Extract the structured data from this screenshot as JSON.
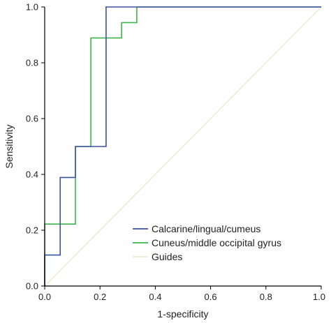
{
  "chart_data": {
    "type": "line",
    "title": "",
    "xlabel": "1-specificity",
    "ylabel": "Sensitivity",
    "xlim": [
      0.0,
      1.0
    ],
    "ylim": [
      0.0,
      1.0
    ],
    "xticks": [
      "0.0",
      "0.2",
      "0.4",
      "0.6",
      "0.8",
      "1.0"
    ],
    "yticks": [
      "0.0",
      "0.2",
      "0.4",
      "0.6",
      "0.8",
      "1.0"
    ],
    "grid": false,
    "legend_position": "bottom-right",
    "series": [
      {
        "name": "Calcarine/lingual/cumeus",
        "color": "#3a53a4",
        "points": [
          [
            0.0,
            0.0
          ],
          [
            0.0,
            0.111
          ],
          [
            0.056,
            0.111
          ],
          [
            0.056,
            0.389
          ],
          [
            0.111,
            0.389
          ],
          [
            0.111,
            0.5
          ],
          [
            0.222,
            0.5
          ],
          [
            0.222,
            1.0
          ],
          [
            1.0,
            1.0
          ]
        ]
      },
      {
        "name": "Cuneus/middle occipital gyrus",
        "color": "#3cb54a",
        "points": [
          [
            0.0,
            0.0
          ],
          [
            0.0,
            0.222
          ],
          [
            0.111,
            0.222
          ],
          [
            0.111,
            0.5
          ],
          [
            0.167,
            0.5
          ],
          [
            0.167,
            0.889
          ],
          [
            0.278,
            0.889
          ],
          [
            0.278,
            0.944
          ],
          [
            0.333,
            0.944
          ],
          [
            0.333,
            1.0
          ],
          [
            1.0,
            1.0
          ]
        ]
      },
      {
        "name": "Guides",
        "color": "#e6e2bf",
        "points": [
          [
            0.0,
            0.0
          ],
          [
            1.0,
            1.0
          ]
        ]
      }
    ]
  }
}
